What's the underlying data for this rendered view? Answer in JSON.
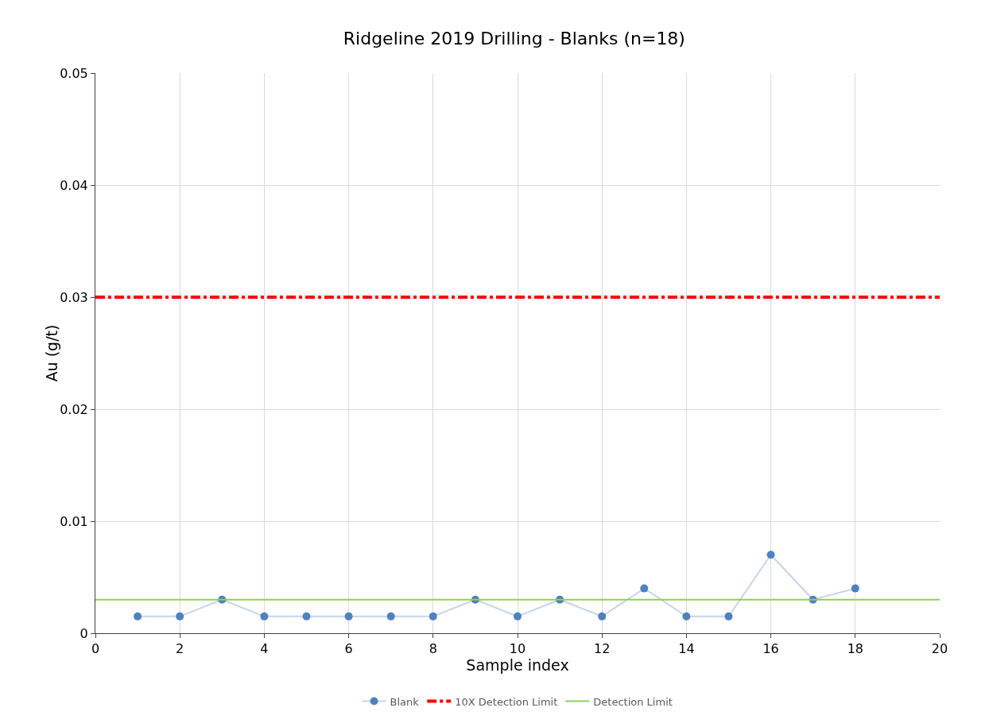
{
  "chart_data": {
    "type": "line",
    "title": "Ridgeline 2019 Drilling - Blanks (n=18)",
    "xlabel": "Sample index",
    "ylabel": "Au (g/t)",
    "x": [
      1,
      2,
      3,
      4,
      5,
      6,
      7,
      8,
      9,
      10,
      11,
      12,
      13,
      14,
      15,
      16,
      17,
      18
    ],
    "series": [
      {
        "name": "Blank",
        "color": "#4f81bd",
        "values": [
          0.0015,
          0.0015,
          0.003,
          0.0015,
          0.0015,
          0.0015,
          0.0015,
          0.0015,
          0.003,
          0.0015,
          0.003,
          0.0015,
          0.004,
          0.0015,
          0.0015,
          0.007,
          0.003,
          0.004
        ]
      }
    ],
    "ref_lines": [
      {
        "axis": "y",
        "value": 0.03,
        "label": "10X Detection Limit",
        "color": "#ff0000",
        "line_style": "dashed"
      },
      {
        "axis": "y",
        "value": 0.003,
        "label": "Detection Limit",
        "color": "#92d050",
        "line_style": "solid"
      }
    ],
    "marker": "circle",
    "line_style": "solid",
    "xlim": [
      0,
      20
    ],
    "xticks": [
      0,
      2,
      4,
      6,
      8,
      10,
      12,
      14,
      16,
      18,
      20
    ],
    "ylim": [
      0,
      0.05
    ],
    "yticks": [
      0,
      0.01,
      0.02,
      0.03,
      0.04,
      0.05
    ],
    "grid": true,
    "legend": "bottom"
  }
}
